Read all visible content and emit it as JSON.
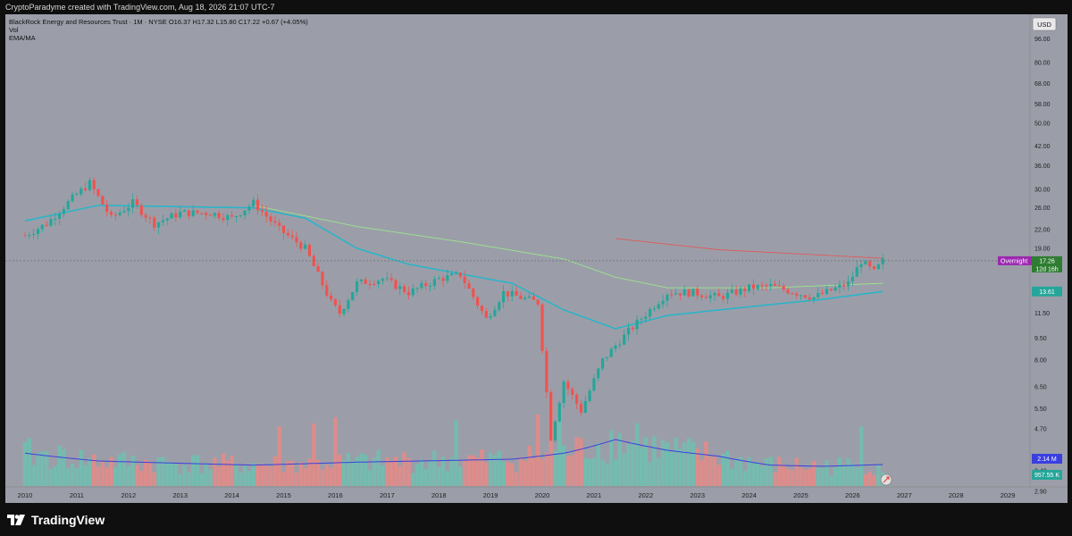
{
  "header": {
    "credit": "CryptoParadyme created with TradingView.com, Aug 18, 2026 21:07 UTC-7"
  },
  "legend": {
    "symbol_line": "BlackRock Energy and Resources Trust · 1M · NYSE  O16.37  H17.32  L15.80  C17.22  +0.67 (+4.05%)",
    "vol": "Vol",
    "ema": "EMA/MA"
  },
  "currency_button": "USD",
  "price_labels": {
    "overnight": "Overnight",
    "price": "17.26",
    "countdown": "12d 16h",
    "ema": "13.61",
    "vol_ma": "2.14 M",
    "vol": "957.55 K"
  },
  "footer": {
    "brand": "TradingView"
  },
  "colors": {
    "up": "#26a69a",
    "down": "#ef5350",
    "ema": "#2bb4c9",
    "ma_green": "#9be48f",
    "ma_red": "#e05a5a",
    "vol_ma": "#3a3fe0",
    "background": "#9b9ea8"
  },
  "chart_data": {
    "type": "candlestick",
    "title": "BlackRock Energy and Resources Trust · 1M · NYSE",
    "y_scale": "log",
    "ylim": [
      3.0,
      110
    ],
    "y_ticks": [
      "96.00",
      "80.00",
      "68.00",
      "58.00",
      "50.00",
      "42.00",
      "36.00",
      "30.00",
      "26.00",
      "22.00",
      "19.00",
      "11.50",
      "9.50",
      "8.00",
      "6.50",
      "5.50",
      "4.70",
      "3.40",
      "2.90"
    ],
    "x_ticks": [
      "2010",
      "2011",
      "2012",
      "2013",
      "2014",
      "2015",
      "2016",
      "2017",
      "2018",
      "2019",
      "2020",
      "2021",
      "2022",
      "2023",
      "2024",
      "2025",
      "2026",
      "2027",
      "2028",
      "2029"
    ],
    "price_path": [
      {
        "date": "2010-01",
        "close": 21
      },
      {
        "date": "2010-06",
        "close": 23
      },
      {
        "date": "2010-12",
        "close": 28
      },
      {
        "date": "2011-04",
        "close": 31.5
      },
      {
        "date": "2011-09",
        "close": 24
      },
      {
        "date": "2012-02",
        "close": 27
      },
      {
        "date": "2012-07",
        "close": 23
      },
      {
        "date": "2013-01",
        "close": 25
      },
      {
        "date": "2013-08",
        "close": 25
      },
      {
        "date": "2014-01",
        "close": 24
      },
      {
        "date": "2014-06",
        "close": 27
      },
      {
        "date": "2014-12",
        "close": 22
      },
      {
        "date": "2015-06",
        "close": 19
      },
      {
        "date": "2015-12",
        "close": 12.5
      },
      {
        "date": "2016-02",
        "close": 11.5
      },
      {
        "date": "2016-06",
        "close": 14.5
      },
      {
        "date": "2016-12",
        "close": 15
      },
      {
        "date": "2017-06",
        "close": 13.5
      },
      {
        "date": "2018-01",
        "close": 15
      },
      {
        "date": "2018-06",
        "close": 15.5
      },
      {
        "date": "2018-12",
        "close": 11
      },
      {
        "date": "2019-04",
        "close": 13.5
      },
      {
        "date": "2019-12",
        "close": 12.5
      },
      {
        "date": "2020-03",
        "close": 4.4
      },
      {
        "date": "2020-06",
        "close": 6.8
      },
      {
        "date": "2020-10",
        "close": 5.4
      },
      {
        "date": "2021-03",
        "close": 8
      },
      {
        "date": "2021-09",
        "close": 10
      },
      {
        "date": "2022-06",
        "close": 13.5
      },
      {
        "date": "2022-12",
        "close": 13.5
      },
      {
        "date": "2023-06",
        "close": 13
      },
      {
        "date": "2024-01",
        "close": 14
      },
      {
        "date": "2024-06",
        "close": 14.2
      },
      {
        "date": "2025-04",
        "close": 13
      },
      {
        "date": "2025-12",
        "close": 14.5
      },
      {
        "date": "2026-03",
        "close": 17.2
      },
      {
        "date": "2026-06",
        "close": 15.8
      },
      {
        "date": "2026-08",
        "close": 17.22
      }
    ],
    "ema_path": [
      {
        "date": "2010-01",
        "value": 23.5
      },
      {
        "date": "2011-06",
        "value": 26.5
      },
      {
        "date": "2014-06",
        "value": 26
      },
      {
        "date": "2015-06",
        "value": 24
      },
      {
        "date": "2016-06",
        "value": 19
      },
      {
        "date": "2017-06",
        "value": 16.8
      },
      {
        "date": "2018-06",
        "value": 15.6
      },
      {
        "date": "2019-06",
        "value": 14.5
      },
      {
        "date": "2020-06",
        "value": 11.8
      },
      {
        "date": "2021-06",
        "value": 10.2
      },
      {
        "date": "2022-06",
        "value": 11.3
      },
      {
        "date": "2023-06",
        "value": 11.8
      },
      {
        "date": "2024-06",
        "value": 12.3
      },
      {
        "date": "2025-06",
        "value": 12.8
      },
      {
        "date": "2026-08",
        "value": 13.61
      }
    ],
    "ma_path": [
      {
        "date": "2014-06",
        "value": 26.5
      },
      {
        "date": "2016-06",
        "value": 22.5
      },
      {
        "date": "2018-06",
        "value": 20
      },
      {
        "date": "2020-06",
        "value": 17.5
      },
      {
        "date": "2021-06",
        "value": 15.2
      },
      {
        "date": "2022-06",
        "value": 14
      },
      {
        "date": "2023-06",
        "value": 14
      },
      {
        "date": "2024-06",
        "value": 14
      },
      {
        "date": "2026-08",
        "value": 14.5
      }
    ],
    "ma_long_path": [
      {
        "date": "2021-06",
        "value": 20.5
      },
      {
        "date": "2023-06",
        "value": 18.8
      },
      {
        "date": "2026-08",
        "value": 17.6
      }
    ],
    "volume": {
      "vol_ma_path": [
        {
          "date": "2010-01",
          "value": 0.55
        },
        {
          "date": "2011-06",
          "value": 0.42
        },
        {
          "date": "2014-06",
          "value": 0.35
        },
        {
          "date": "2016-06",
          "value": 0.4
        },
        {
          "date": "2019-06",
          "value": 0.45
        },
        {
          "date": "2020-06",
          "value": 0.55
        },
        {
          "date": "2021-06",
          "value": 0.78
        },
        {
          "date": "2022-06",
          "value": 0.6
        },
        {
          "date": "2023-06",
          "value": 0.5
        },
        {
          "date": "2024-06",
          "value": 0.35
        },
        {
          "date": "2025-06",
          "value": 0.33
        },
        {
          "date": "2026-08",
          "value": 0.36
        }
      ],
      "spikes": [
        {
          "date": "2020-03",
          "value": 1.45
        },
        {
          "date": "2020-05",
          "value": 1.3
        },
        {
          "date": "2019-12",
          "value": 1.2
        },
        {
          "date": "2016-01",
          "value": 1.15
        },
        {
          "date": "2021-11",
          "value": 1.05
        },
        {
          "date": "2015-08",
          "value": 1.05
        },
        {
          "date": "2018-05",
          "value": 1.1
        },
        {
          "date": "2014-12",
          "value": 1.0
        },
        {
          "date": "2026-03",
          "value": 1.0
        }
      ]
    }
  }
}
